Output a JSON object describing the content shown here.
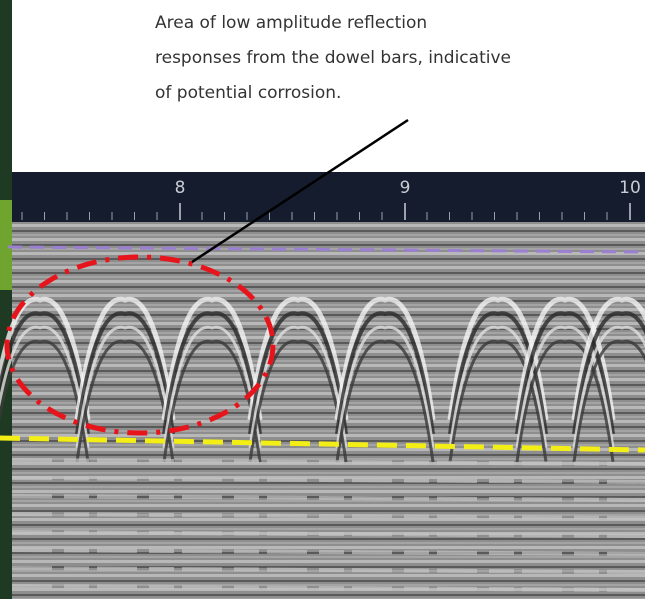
{
  "annotation": {
    "lines": [
      "Area of low amplitude reflection",
      "responses from the dowel bars, indicative",
      "of potential corrosion."
    ]
  },
  "axis": {
    "ticks": [
      8,
      9,
      10
    ]
  }
}
